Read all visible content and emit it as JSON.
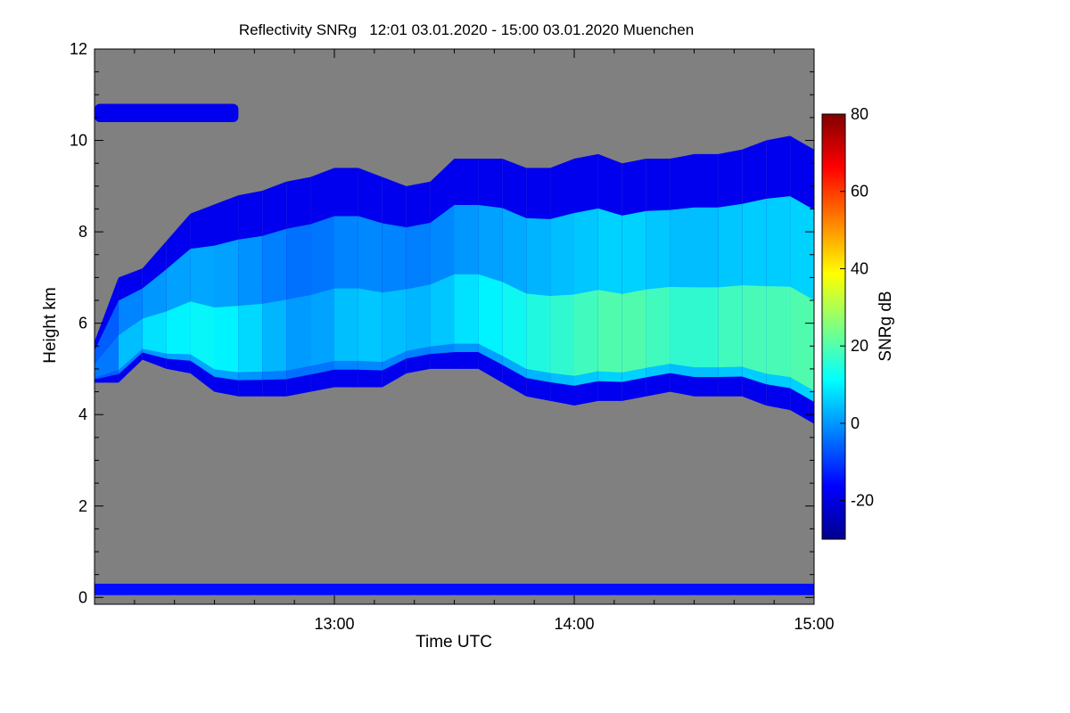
{
  "chart_data": {
    "type": "heatmap",
    "title": "Reflectivity SNRg   12:01 03.01.2020 - 15:00 03.01.2020 Muenchen",
    "xlabel": "Time UTC",
    "ylabel": "Height km",
    "x_range_hours": [
      12.0,
      15.0
    ],
    "x_ticks": [
      {
        "value": 13.0,
        "label": "13:00"
      },
      {
        "value": 14.0,
        "label": "14:00"
      },
      {
        "value": 15.0,
        "label": "15:00"
      }
    ],
    "y_range": [
      -0.15,
      12.0
    ],
    "y_ticks": [
      0,
      2,
      4,
      6,
      8,
      10,
      12
    ],
    "colorbar": {
      "label": "SNRg dB",
      "range": [
        -30,
        80
      ],
      "ticks": [
        -20,
        0,
        20,
        40,
        60,
        80
      ],
      "colormap": "jet"
    },
    "background_color": "#808080",
    "cloud_layer": {
      "x": [
        12.0,
        12.1,
        12.2,
        12.3,
        12.4,
        12.5,
        12.6,
        12.7,
        12.8,
        12.9,
        13.0,
        13.1,
        13.2,
        13.3,
        13.4,
        13.5,
        13.6,
        13.7,
        13.8,
        13.9,
        14.0,
        14.1,
        14.2,
        14.3,
        14.4,
        14.5,
        14.6,
        14.7,
        14.8,
        14.9,
        15.0
      ],
      "top_km": [
        5.6,
        7.0,
        7.2,
        7.8,
        8.4,
        8.6,
        8.8,
        8.9,
        9.1,
        9.2,
        9.4,
        9.4,
        9.2,
        9.0,
        9.1,
        9.6,
        9.6,
        9.6,
        9.4,
        9.4,
        9.6,
        9.7,
        9.5,
        9.6,
        9.6,
        9.7,
        9.7,
        9.8,
        10.0,
        10.1,
        9.8
      ],
      "base_km": [
        4.7,
        4.7,
        5.2,
        5.0,
        4.9,
        4.5,
        4.4,
        4.4,
        4.4,
        4.5,
        4.6,
        4.6,
        4.6,
        4.9,
        5.0,
        5.0,
        5.0,
        4.7,
        4.4,
        4.3,
        4.2,
        4.3,
        4.3,
        4.4,
        4.5,
        4.4,
        4.4,
        4.4,
        4.2,
        4.1,
        3.8
      ],
      "peak_snr_db": [
        -8,
        2,
        8,
        10,
        12,
        12,
        10,
        6,
        2,
        0,
        4,
        6,
        6,
        4,
        4,
        8,
        10,
        12,
        14,
        16,
        18,
        20,
        22,
        20,
        18,
        16,
        18,
        20,
        20,
        20,
        22
      ]
    },
    "upper_wisp": {
      "x": [
        12.0,
        12.6
      ],
      "top_km": 10.8,
      "base_km": 10.4,
      "snr_db": -18
    },
    "surface_band": {
      "height_km": [
        0.05,
        0.3
      ],
      "snr_db": -15
    }
  }
}
